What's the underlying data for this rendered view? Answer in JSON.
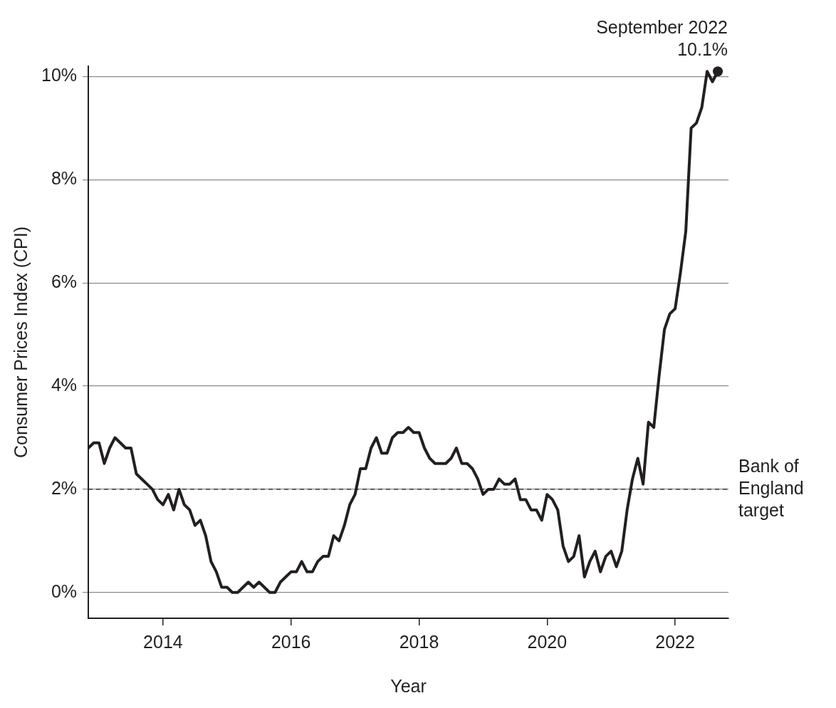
{
  "chart_data": {
    "type": "line",
    "xlabel": "Year",
    "ylabel": "Consumer Prices Index (CPI)",
    "x": [
      "2012-11",
      "2012-12",
      "2013-01",
      "2013-02",
      "2013-03",
      "2013-04",
      "2013-05",
      "2013-06",
      "2013-07",
      "2013-08",
      "2013-09",
      "2013-10",
      "2013-11",
      "2013-12",
      "2014-01",
      "2014-02",
      "2014-03",
      "2014-04",
      "2014-05",
      "2014-06",
      "2014-07",
      "2014-08",
      "2014-09",
      "2014-10",
      "2014-11",
      "2014-12",
      "2015-01",
      "2015-02",
      "2015-03",
      "2015-04",
      "2015-05",
      "2015-06",
      "2015-07",
      "2015-08",
      "2015-09",
      "2015-10",
      "2015-11",
      "2015-12",
      "2016-01",
      "2016-02",
      "2016-03",
      "2016-04",
      "2016-05",
      "2016-06",
      "2016-07",
      "2016-08",
      "2016-09",
      "2016-10",
      "2016-11",
      "2016-12",
      "2017-01",
      "2017-02",
      "2017-03",
      "2017-04",
      "2017-05",
      "2017-06",
      "2017-07",
      "2017-08",
      "2017-09",
      "2017-10",
      "2017-11",
      "2017-12",
      "2018-01",
      "2018-02",
      "2018-03",
      "2018-04",
      "2018-05",
      "2018-06",
      "2018-07",
      "2018-08",
      "2018-09",
      "2018-10",
      "2018-11",
      "2018-12",
      "2019-01",
      "2019-02",
      "2019-03",
      "2019-04",
      "2019-05",
      "2019-06",
      "2019-07",
      "2019-08",
      "2019-09",
      "2019-10",
      "2019-11",
      "2019-12",
      "2020-01",
      "2020-02",
      "2020-03",
      "2020-04",
      "2020-05",
      "2020-06",
      "2020-07",
      "2020-08",
      "2020-09",
      "2020-10",
      "2020-11",
      "2020-12",
      "2021-01",
      "2021-02",
      "2021-03",
      "2021-04",
      "2021-05",
      "2021-06",
      "2021-07",
      "2021-08",
      "2021-09",
      "2021-10",
      "2021-11",
      "2021-12",
      "2022-01",
      "2022-02",
      "2022-03",
      "2022-04",
      "2022-05",
      "2022-06",
      "2022-07",
      "2022-08",
      "2022-09"
    ],
    "series": [
      {
        "color": "#231f20",
        "values": [
          2.8,
          2.9,
          2.9,
          2.5,
          2.8,
          3.0,
          2.9,
          2.8,
          2.8,
          2.3,
          2.2,
          2.1,
          2.0,
          1.8,
          1.7,
          1.9,
          1.6,
          2.0,
          1.7,
          1.6,
          1.3,
          1.4,
          1.1,
          0.6,
          0.4,
          0.1,
          0.1,
          0.0,
          0.0,
          0.1,
          0.2,
          0.1,
          0.2,
          0.1,
          0.0,
          0.0,
          0.2,
          0.3,
          0.4,
          0.4,
          0.6,
          0.4,
          0.4,
          0.6,
          0.7,
          0.7,
          1.1,
          1.0,
          1.3,
          1.7,
          1.9,
          2.4,
          2.4,
          2.8,
          3.0,
          2.7,
          2.7,
          3.0,
          3.1,
          3.1,
          3.2,
          3.1,
          3.1,
          2.8,
          2.6,
          2.5,
          2.5,
          2.5,
          2.6,
          2.8,
          2.5,
          2.5,
          2.4,
          2.2,
          1.9,
          2.0,
          2.0,
          2.2,
          2.1,
          2.1,
          2.2,
          1.8,
          1.8,
          1.6,
          1.6,
          1.4,
          1.9,
          1.8,
          1.6,
          0.9,
          0.6,
          0.7,
          1.1,
          0.3,
          0.6,
          0.8,
          0.4,
          0.7,
          0.8,
          0.5,
          0.8,
          1.6,
          2.2,
          2.6,
          2.1,
          3.3,
          3.2,
          4.2,
          5.1,
          5.4,
          5.5,
          6.2,
          7.0,
          9.0,
          9.1,
          9.4,
          10.1,
          9.9,
          10.1
        ]
      }
    ],
    "xlim": [
      "2012-11",
      "2022-11"
    ],
    "xticks": [
      "2014",
      "2016",
      "2018",
      "2020",
      "2022"
    ],
    "ylim": [
      -0.5,
      10.2
    ],
    "yticks": [
      {
        "value": 0,
        "label": "0%"
      },
      {
        "value": 2,
        "label": "2%"
      },
      {
        "value": 4,
        "label": "4%"
      },
      {
        "value": 6,
        "label": "6%"
      },
      {
        "value": 8,
        "label": "8%"
      },
      {
        "value": 10,
        "label": "10%"
      }
    ],
    "grid": "y",
    "legend": false,
    "marker": "none",
    "line_style": "solid",
    "ref_lines": [
      {
        "axis": "y",
        "value": 2,
        "label": "Bank of England target",
        "line_style": "dashed",
        "color": "#231f20"
      }
    ],
    "annotations": [
      {
        "text": "September 2022 10.1%",
        "x": "2022-09",
        "y": 10.1
      }
    ]
  }
}
